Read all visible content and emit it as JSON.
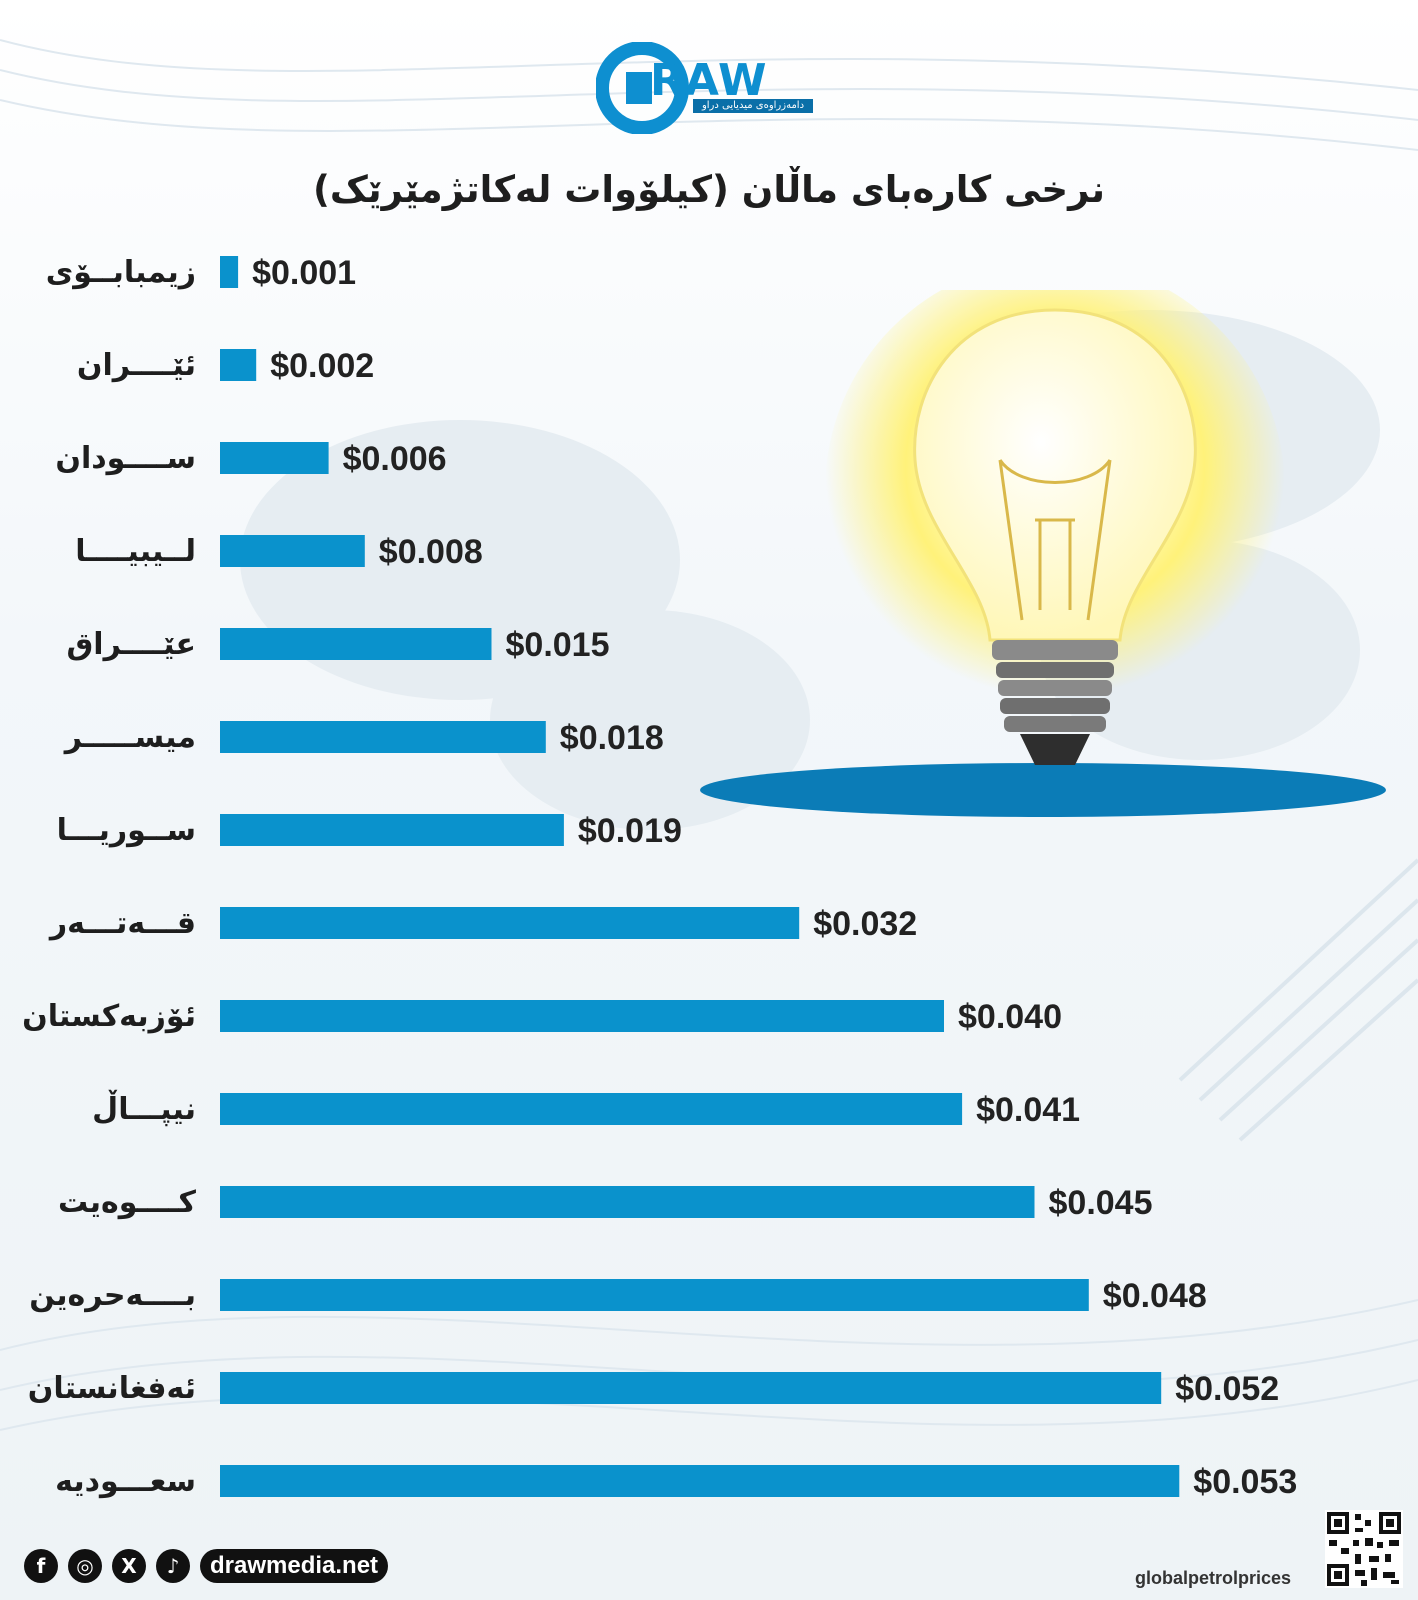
{
  "brand": {
    "logo_text": "RAW",
    "logo_tagline": "دامەزراوەی میدیایی دراو",
    "website": "drawmedia.net",
    "social_icons": [
      "facebook-icon",
      "instagram-icon",
      "x-icon",
      "tiktok-icon"
    ]
  },
  "source": "globalpetrolprices",
  "colors": {
    "bar": "#0a92cc",
    "accent": "#0e8fd0",
    "shadow": "#0a6fa8",
    "bulb_glow": "#fff27a"
  },
  "chart_data": {
    "type": "bar",
    "orientation": "horizontal",
    "title": "نرخی کارەبای ماڵان (کیلۆوات لەکاتژمێرێک)",
    "categories": [
      "زیمبابــۆی",
      "ئێــــران",
      "ســــودان",
      "لــيبيــــا",
      "عێــــراق",
      "میســـــر",
      "ســوریـــا",
      "قـــەتـــەر",
      "ئۆزبەکستان",
      "نیپـــاڵ",
      "کــــوەیت",
      "بــــەحرەین",
      "ئەفغانستان",
      "سعـــودیە"
    ],
    "values": [
      0.001,
      0.002,
      0.006,
      0.008,
      0.015,
      0.018,
      0.019,
      0.032,
      0.04,
      0.041,
      0.045,
      0.048,
      0.052,
      0.053
    ],
    "value_labels": [
      "$0.001",
      "$0.002",
      "$0.006",
      "$0.008",
      "$0.015",
      "$0.018",
      "$0.019",
      "$0.032",
      "$0.040",
      "$0.041",
      "$0.045",
      "$0.048",
      "$0.052",
      "$0.053"
    ],
    "xlim": [
      0,
      0.055
    ],
    "grid": false,
    "legend": "none"
  }
}
